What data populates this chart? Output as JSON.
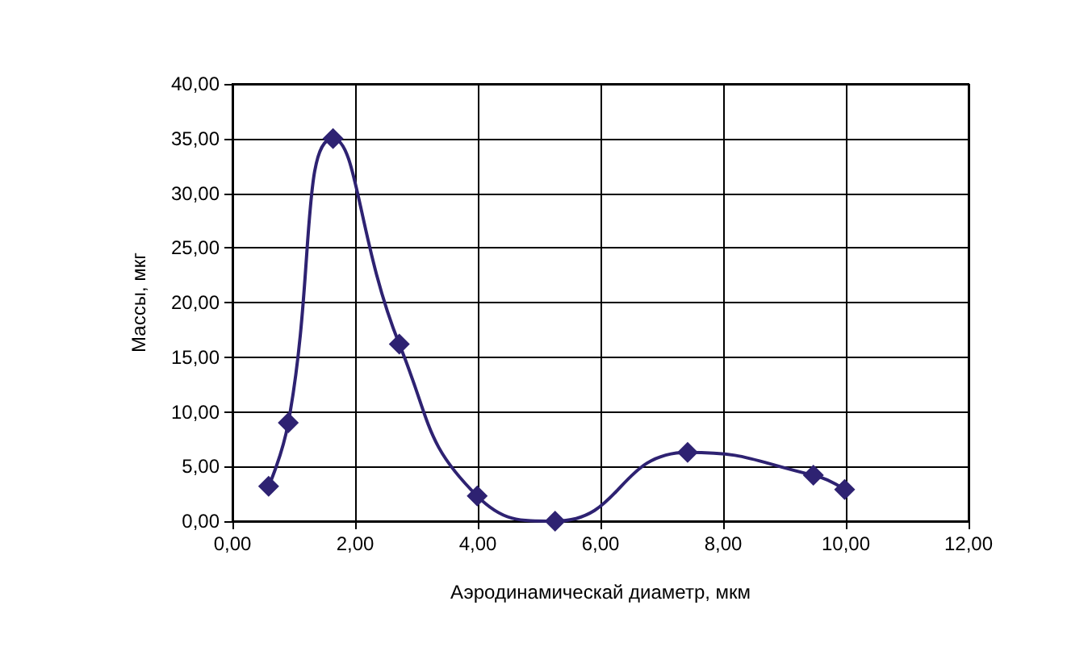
{
  "chart_data": {
    "type": "line",
    "xlabel": "Аэродинамическай диаметр, мкм",
    "ylabel": "Массы, мкг",
    "x": [
      0.59,
      0.91,
      1.64,
      2.72,
      3.99,
      5.26,
      7.42,
      9.47,
      9.98
    ],
    "series": [
      {
        "color": "#2e2272",
        "values": [
          3.2,
          9,
          35,
          16.2,
          2.3,
          0,
          6.3,
          4.2,
          2.9
        ]
      }
    ],
    "xlim": [
      0,
      12
    ],
    "ylim": [
      0,
      40
    ],
    "xticks": [
      {
        "value": 0,
        "label": "0,00"
      },
      {
        "value": 2,
        "label": "2,00"
      },
      {
        "value": 4,
        "label": "4,00"
      },
      {
        "value": 6,
        "label": "6,00"
      },
      {
        "value": 8,
        "label": "8,00"
      },
      {
        "value": 10,
        "label": "10,00"
      },
      {
        "value": 12,
        "label": "12,00"
      }
    ],
    "yticks": [
      {
        "value": 0,
        "label": "0,00"
      },
      {
        "value": 5,
        "label": "5,00"
      },
      {
        "value": 10,
        "label": "10,00"
      },
      {
        "value": 15,
        "label": "15,00"
      },
      {
        "value": 20,
        "label": "20,00"
      },
      {
        "value": 25,
        "label": "25,00"
      },
      {
        "value": 30,
        "label": "30,00"
      },
      {
        "value": 35,
        "label": "35,00"
      },
      {
        "value": 40,
        "label": "40,00"
      }
    ],
    "grid": true,
    "marker": "diamond",
    "line_style": "solid"
  }
}
